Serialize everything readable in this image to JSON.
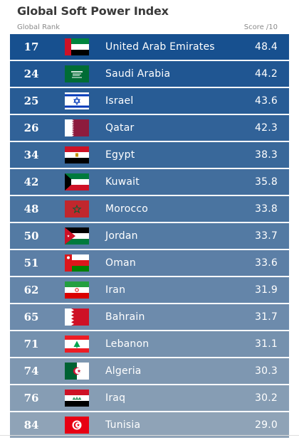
{
  "chart_data": {
    "type": "table",
    "title": "Global Soft Power Index",
    "columns": [
      "Global Rank",
      "Score /10"
    ],
    "rows": [
      {
        "rank": "17",
        "country": "United Arab Emirates",
        "score": "48.4",
        "flag": "uae-flag-icon"
      },
      {
        "rank": "24",
        "country": "Saudi Arabia",
        "score": "44.2",
        "flag": "saudi-arabia-flag-icon"
      },
      {
        "rank": "25",
        "country": "Israel",
        "score": "43.6",
        "flag": "israel-flag-icon"
      },
      {
        "rank": "26",
        "country": "Qatar",
        "score": "42.3",
        "flag": "qatar-flag-icon"
      },
      {
        "rank": "34",
        "country": "Egypt",
        "score": "38.3",
        "flag": "egypt-flag-icon"
      },
      {
        "rank": "42",
        "country": "Kuwait",
        "score": "35.8",
        "flag": "kuwait-flag-icon"
      },
      {
        "rank": "48",
        "country": "Morocco",
        "score": "33.8",
        "flag": "morocco-flag-icon"
      },
      {
        "rank": "50",
        "country": "Jordan",
        "score": "33.7",
        "flag": "jordan-flag-icon"
      },
      {
        "rank": "51",
        "country": "Oman",
        "score": "33.6",
        "flag": "oman-flag-icon"
      },
      {
        "rank": "62",
        "country": "Iran",
        "score": "31.9",
        "flag": "iran-flag-icon"
      },
      {
        "rank": "65",
        "country": "Bahrain",
        "score": "31.7",
        "flag": "bahrain-flag-icon"
      },
      {
        "rank": "71",
        "country": "Lebanon",
        "score": "31.1",
        "flag": "lebanon-flag-icon"
      },
      {
        "rank": "74",
        "country": "Algeria",
        "score": "30.3",
        "flag": "algeria-flag-icon"
      },
      {
        "rank": "76",
        "country": "Iraq",
        "score": "30.2",
        "flag": "iraq-flag-icon"
      },
      {
        "rank": "84",
        "country": "Tunisia",
        "score": "29.0",
        "flag": "tunisia-flag-icon"
      }
    ],
    "color_scale": [
      "#17508f",
      "#8fa3b7"
    ]
  }
}
